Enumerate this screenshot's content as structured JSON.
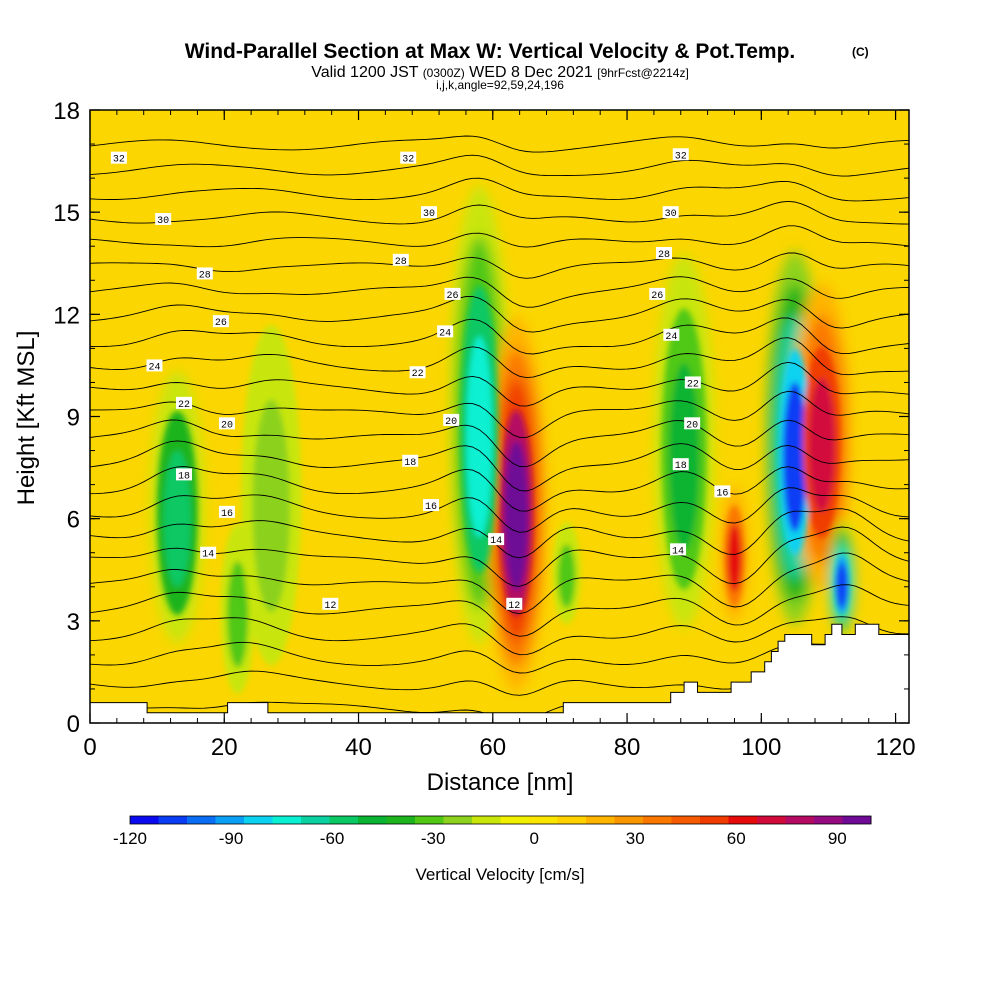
{
  "titles": {
    "main": "Wind-Parallel Section at Max W: Vertical Velocity & Pot.Temp.",
    "copyright": "(C)",
    "valid_prefix": "Valid 1200 JST",
    "valid_utc": "(0300Z)",
    "valid_date": "WED 8 Dec 2021",
    "forecast": "[9hrFcst@2214z]",
    "indices": "i,j,k,angle=92,59,24,196"
  },
  "chart_data": {
    "type": "heatmap",
    "xlabel": "Distance [nm]",
    "ylabel": "Height [Kft MSL]",
    "xlim": [
      0,
      122
    ],
    "ylim": [
      0,
      18
    ],
    "x_ticks": [
      "0",
      "20",
      "40",
      "60",
      "80",
      "100",
      "120"
    ],
    "y_ticks": [
      "0",
      "3",
      "6",
      "9",
      "12",
      "15",
      "18"
    ],
    "colorbar": {
      "title": "Vertical Velocity [cm/s]",
      "tick_labels": [
        "-120",
        "-90",
        "-60",
        "-30",
        "0",
        "30",
        "60",
        "90"
      ],
      "range": [
        -120,
        100
      ],
      "colors": [
        "#0a0af0",
        "#0a3cf5",
        "#0a6ef5",
        "#0aa0f5",
        "#0ad2f0",
        "#0af0d2",
        "#0ad2a0",
        "#0ac864",
        "#0ab432",
        "#1eb41e",
        "#50c814",
        "#8cd21e",
        "#c8e60a",
        "#f0f000",
        "#fae600",
        "#ffd200",
        "#ffb400",
        "#fa9600",
        "#fa7800",
        "#f55a00",
        "#f03c00",
        "#e60a0a",
        "#d20a3c",
        "#b40a64",
        "#960a82",
        "#6e0a96"
      ]
    },
    "velocity_features": [
      {
        "x": 13,
        "z_bottom": 2.5,
        "z_top": 10.5,
        "w_min_cm_s": -55
      },
      {
        "x": 22,
        "z_bottom": 1,
        "z_top": 6,
        "w_min_cm_s": -35
      },
      {
        "x": 27,
        "z_bottom": 2,
        "z_top": 12,
        "w_min_cm_s": -25
      },
      {
        "x": 58,
        "z_bottom": 2.5,
        "z_top": 16,
        "w_min_cm_s": -70
      },
      {
        "x": 63.5,
        "z_bottom": 1,
        "z_top": 12,
        "w_max_cm_s": 95
      },
      {
        "x": 71,
        "z_bottom": 3,
        "z_top": 6,
        "w_min_cm_s": -30
      },
      {
        "x": 88.5,
        "z_bottom": 3,
        "z_top": 14,
        "w_min_cm_s": -50
      },
      {
        "x": 96,
        "z_bottom": 3,
        "z_top": 7,
        "w_max_cm_s": 60
      },
      {
        "x": 105,
        "z_bottom": 3,
        "z_top": 14,
        "w_min_cm_s": -105
      },
      {
        "x": 109,
        "z_bottom": 4,
        "z_top": 13,
        "w_max_cm_s": 70
      },
      {
        "x": 112,
        "z_bottom": 2.5,
        "z_top": 6,
        "w_min_cm_s": -110
      }
    ],
    "pot_temp_contour_labels": [
      {
        "text": "32",
        "x": 4.3,
        "y": 16.6
      },
      {
        "text": "32",
        "x": 47.4,
        "y": 16.6
      },
      {
        "text": "32",
        "x": 88,
        "y": 16.7
      },
      {
        "text": "30",
        "x": 10.9,
        "y": 14.8
      },
      {
        "text": "30",
        "x": 50.5,
        "y": 15
      },
      {
        "text": "30",
        "x": 86.5,
        "y": 15
      },
      {
        "text": "28",
        "x": 17.1,
        "y": 13.2
      },
      {
        "text": "28",
        "x": 46.3,
        "y": 13.6
      },
      {
        "text": "28",
        "x": 85.5,
        "y": 13.8
      },
      {
        "text": "26",
        "x": 19.5,
        "y": 11.8
      },
      {
        "text": "26",
        "x": 54,
        "y": 12.6
      },
      {
        "text": "26",
        "x": 84.5,
        "y": 12.6
      },
      {
        "text": "24",
        "x": 9.6,
        "y": 10.5
      },
      {
        "text": "24",
        "x": 52.9,
        "y": 11.5
      },
      {
        "text": "24",
        "x": 86.6,
        "y": 11.4
      },
      {
        "text": "22",
        "x": 14,
        "y": 9.4
      },
      {
        "text": "22",
        "x": 48.8,
        "y": 10.3
      },
      {
        "text": "22",
        "x": 89.8,
        "y": 10
      },
      {
        "text": "20",
        "x": 20.4,
        "y": 8.8
      },
      {
        "text": "20",
        "x": 53.8,
        "y": 8.9
      },
      {
        "text": "20",
        "x": 89.7,
        "y": 8.8
      },
      {
        "text": "18",
        "x": 14,
        "y": 7.3
      },
      {
        "text": "18",
        "x": 47.7,
        "y": 7.7
      },
      {
        "text": "18",
        "x": 88,
        "y": 7.6
      },
      {
        "text": "16",
        "x": 20.4,
        "y": 6.2
      },
      {
        "text": "16",
        "x": 50.8,
        "y": 6.4
      },
      {
        "text": "16",
        "x": 94.2,
        "y": 6.8
      },
      {
        "text": "14",
        "x": 17.6,
        "y": 5
      },
      {
        "text": "14",
        "x": 60.5,
        "y": 5.4
      },
      {
        "text": "14",
        "x": 87.6,
        "y": 5.1
      },
      {
        "text": "12",
        "x": 35.8,
        "y": 3.5
      },
      {
        "text": "12",
        "x": 63.2,
        "y": 3.5
      }
    ],
    "terrain": [
      [
        0,
        0.6
      ],
      [
        8.5,
        0.6
      ],
      [
        8.5,
        0.3
      ],
      [
        20.5,
        0.3
      ],
      [
        20.5,
        0.6
      ],
      [
        26.5,
        0.6
      ],
      [
        26.5,
        0.3
      ],
      [
        70.5,
        0.3
      ],
      [
        70.5,
        0.6
      ],
      [
        86.5,
        0.6
      ],
      [
        86.5,
        0.9
      ],
      [
        88.5,
        0.9
      ],
      [
        88.5,
        1.2
      ],
      [
        90.5,
        1.2
      ],
      [
        90.5,
        0.9
      ],
      [
        95.5,
        0.9
      ],
      [
        95.5,
        1.2
      ],
      [
        98.5,
        1.2
      ],
      [
        98.5,
        1.5
      ],
      [
        100.5,
        1.5
      ],
      [
        100.5,
        1.8
      ],
      [
        101.5,
        1.8
      ],
      [
        101.5,
        2.1
      ],
      [
        102.5,
        2.1
      ],
      [
        102.5,
        2.4
      ],
      [
        103.5,
        2.4
      ],
      [
        103.5,
        2.6
      ],
      [
        107.5,
        2.6
      ],
      [
        107.5,
        2.3
      ],
      [
        109.5,
        2.3
      ],
      [
        109.5,
        2.6
      ],
      [
        110.5,
        2.6
      ],
      [
        110.5,
        2.9
      ],
      [
        112,
        2.9
      ],
      [
        112,
        2.6
      ],
      [
        114,
        2.6
      ],
      [
        114,
        2.9
      ],
      [
        117.5,
        2.9
      ],
      [
        117.5,
        2.6
      ],
      [
        122,
        2.6
      ]
    ]
  }
}
